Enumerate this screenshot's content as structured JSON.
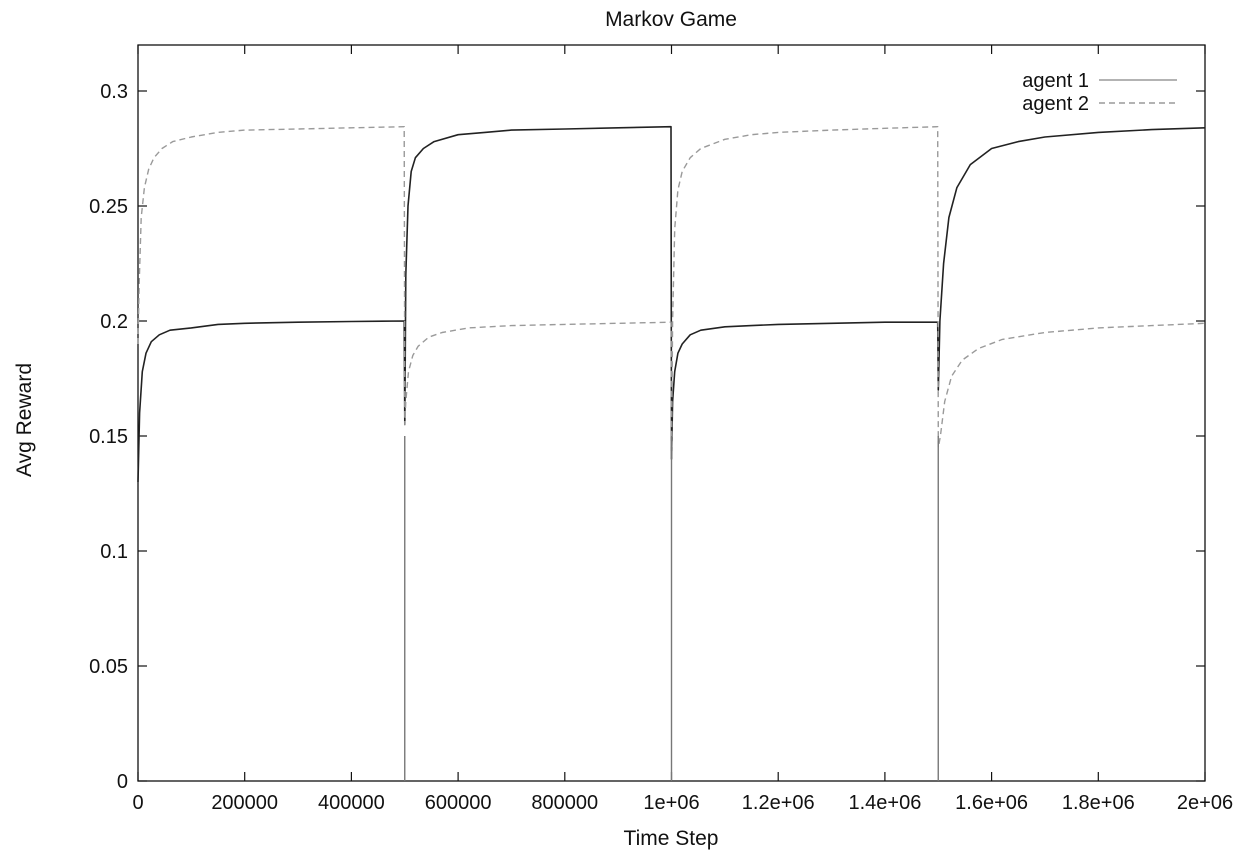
{
  "chart_data": {
    "type": "line",
    "title": "Markov Game",
    "xlabel": "Time Step",
    "ylabel": "Avg Reward",
    "xlim": [
      0,
      2000000
    ],
    "ylim": [
      0,
      0.32
    ],
    "x_ticks": [
      {
        "value": 0,
        "label": "0"
      },
      {
        "value": 200000,
        "label": "200000"
      },
      {
        "value": 400000,
        "label": "400000"
      },
      {
        "value": 600000,
        "label": "600000"
      },
      {
        "value": 800000,
        "label": "800000"
      },
      {
        "value": 1000000,
        "label": "1e+06"
      },
      {
        "value": 1200000,
        "label": "1.2e+06"
      },
      {
        "value": 1400000,
        "label": "1.4e+06"
      },
      {
        "value": 1600000,
        "label": "1.6e+06"
      },
      {
        "value": 1800000,
        "label": "1.8e+06"
      },
      {
        "value": 2000000,
        "label": "2e+06"
      }
    ],
    "y_ticks": [
      {
        "value": 0,
        "label": "0"
      },
      {
        "value": 0.05,
        "label": "0.05"
      },
      {
        "value": 0.1,
        "label": "0.1"
      },
      {
        "value": 0.15,
        "label": "0.15"
      },
      {
        "value": 0.2,
        "label": "0.2"
      },
      {
        "value": 0.25,
        "label": "0.25"
      },
      {
        "value": 0.3,
        "label": "0.3"
      }
    ],
    "grid": false,
    "legend_position": "top-right",
    "series": [
      {
        "name": "agent 1",
        "style": "solid",
        "color": "#9a9a9a",
        "x": [
          0,
          3000,
          8000,
          15000,
          25000,
          40000,
          60000,
          100000,
          150000,
          200000,
          300000,
          400000,
          499000,
          500000,
          502000,
          506000,
          512000,
          520000,
          535000,
          555000,
          600000,
          650000,
          700000,
          800000,
          900000,
          999000,
          1000000,
          1002000,
          1006000,
          1012000,
          1020000,
          1035000,
          1055000,
          1100000,
          1150000,
          1200000,
          1300000,
          1400000,
          1499000,
          1500000,
          1503000,
          1510000,
          1520000,
          1535000,
          1560000,
          1600000,
          1650000,
          1700000,
          1800000,
          1900000,
          2000000
        ],
        "y": [
          0.13,
          0.16,
          0.178,
          0.186,
          0.191,
          0.194,
          0.196,
          0.197,
          0.1985,
          0.199,
          0.1995,
          0.1998,
          0.2,
          0.155,
          0.22,
          0.25,
          0.265,
          0.271,
          0.275,
          0.278,
          0.281,
          0.282,
          0.283,
          0.2835,
          0.284,
          0.2845,
          0.14,
          0.165,
          0.178,
          0.186,
          0.19,
          0.194,
          0.196,
          0.1975,
          0.198,
          0.1985,
          0.199,
          0.1995,
          0.1995,
          0.17,
          0.2,
          0.225,
          0.245,
          0.258,
          0.268,
          0.275,
          0.278,
          0.28,
          0.282,
          0.2832,
          0.284
        ]
      },
      {
        "name": "agent 2",
        "style": "dashed",
        "color": "#9a9a9a",
        "x": [
          0,
          2000,
          6000,
          12000,
          20000,
          30000,
          45000,
          65000,
          100000,
          150000,
          200000,
          300000,
          400000,
          499000,
          500000,
          502000,
          507000,
          515000,
          525000,
          545000,
          570000,
          620000,
          700000,
          800000,
          900000,
          999000,
          1000000,
          1002000,
          1006000,
          1012000,
          1020000,
          1035000,
          1055000,
          1100000,
          1150000,
          1200000,
          1300000,
          1400000,
          1499000,
          1500000,
          1504000,
          1512000,
          1525000,
          1545000,
          1575000,
          1620000,
          1700000,
          1800000,
          1900000,
          2000000
        ],
        "y": [
          0.19,
          0.215,
          0.245,
          0.258,
          0.266,
          0.271,
          0.275,
          0.278,
          0.28,
          0.282,
          0.283,
          0.2835,
          0.284,
          0.2845,
          0.155,
          0.165,
          0.178,
          0.185,
          0.189,
          0.193,
          0.195,
          0.197,
          0.198,
          0.1985,
          0.199,
          0.1995,
          0.14,
          0.2,
          0.24,
          0.257,
          0.265,
          0.271,
          0.275,
          0.279,
          0.281,
          0.282,
          0.283,
          0.2838,
          0.2845,
          0.145,
          0.15,
          0.165,
          0.176,
          0.183,
          0.188,
          0.192,
          0.195,
          0.197,
          0.198,
          0.199
        ]
      }
    ]
  }
}
